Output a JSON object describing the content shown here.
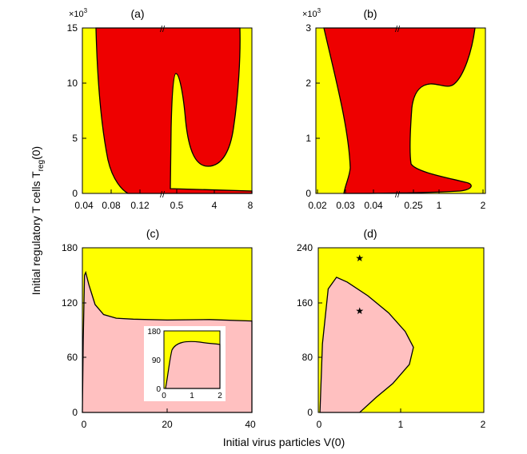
{
  "figure": {
    "ylabel_main": "Initial regulatory T cells T",
    "ylabel_sub": "reg",
    "ylabel_tail": "(0)",
    "xlabel": "Initial virus particles V(0)"
  },
  "colors": {
    "yellow": "#ffff00",
    "red": "#ee0000",
    "pink": "#ffc0c0",
    "outline": "#000000"
  },
  "chart_data": [
    {
      "id": "a",
      "type": "area",
      "panel_label": "(a)",
      "multiplier_base": "×10",
      "multiplier_exp": "3",
      "x_scale": "broken",
      "x_segments": [
        [
          0.04,
          0.14
        ],
        [
          0.3,
          8
        ]
      ],
      "xticks": [
        "0.04",
        "0.08",
        "0.12",
        "0.5",
        "4",
        "8"
      ],
      "ylim": [
        0,
        15
      ],
      "yticks": [
        "0",
        "5",
        "10",
        "15"
      ],
      "regions": [
        {
          "color": "yellow",
          "label": ""
        },
        {
          "color": "red",
          "label": ""
        }
      ]
    },
    {
      "id": "b",
      "type": "area",
      "panel_label": "(b)",
      "multiplier_base": "×10",
      "multiplier_exp": "3",
      "x_scale": "broken",
      "x_segments": [
        [
          0.02,
          0.045
        ],
        [
          0.2,
          2
        ]
      ],
      "xticks": [
        "0.02",
        "0.03",
        "0.04",
        "0.25",
        "1",
        "2"
      ],
      "ylim": [
        0,
        3
      ],
      "yticks": [
        "0",
        "1",
        "2",
        "3"
      ],
      "regions": [
        {
          "color": "yellow",
          "label": ""
        },
        {
          "color": "red",
          "label": ""
        }
      ]
    },
    {
      "id": "c",
      "type": "area",
      "panel_label": "(c)",
      "xlim": [
        0,
        40
      ],
      "xticks": [
        "0",
        "20",
        "40"
      ],
      "ylim": [
        0,
        180
      ],
      "yticks": [
        "0",
        "60",
        "120",
        "180"
      ],
      "boundary": [
        [
          0,
          0
        ],
        [
          0.2,
          80
        ],
        [
          0.5,
          150
        ],
        [
          0.8,
          153
        ],
        [
          1.5,
          140
        ],
        [
          3,
          118
        ],
        [
          5,
          107
        ],
        [
          8,
          103
        ],
        [
          12,
          102
        ],
        [
          20,
          101
        ],
        [
          30,
          101.5
        ],
        [
          40,
          100
        ]
      ],
      "inset": {
        "xlim": [
          0,
          2
        ],
        "xticks": [
          "0",
          "1",
          "2"
        ],
        "ylim": [
          0,
          180
        ],
        "yticks": [
          "0",
          "90",
          "180"
        ]
      }
    },
    {
      "id": "d",
      "type": "area",
      "panel_label": "(d)",
      "xlim": [
        0,
        2
      ],
      "xticks": [
        "0",
        "1",
        "2"
      ],
      "ylim": [
        0,
        240
      ],
      "yticks": [
        "0",
        "80",
        "160",
        "240"
      ],
      "boundary": [
        [
          0.02,
          0
        ],
        [
          0.05,
          100
        ],
        [
          0.12,
          180
        ],
        [
          0.22,
          197
        ],
        [
          0.35,
          190
        ],
        [
          0.6,
          170
        ],
        [
          0.85,
          145
        ],
        [
          1.05,
          118
        ],
        [
          1.15,
          95
        ],
        [
          1.1,
          70
        ],
        [
          0.9,
          42
        ],
        [
          0.7,
          22
        ],
        [
          0.5,
          0
        ]
      ],
      "markers": [
        {
          "x": 0.5,
          "y": 225,
          "symbol": "★"
        },
        {
          "x": 0.5,
          "y": 148,
          "symbol": "★"
        }
      ]
    }
  ]
}
